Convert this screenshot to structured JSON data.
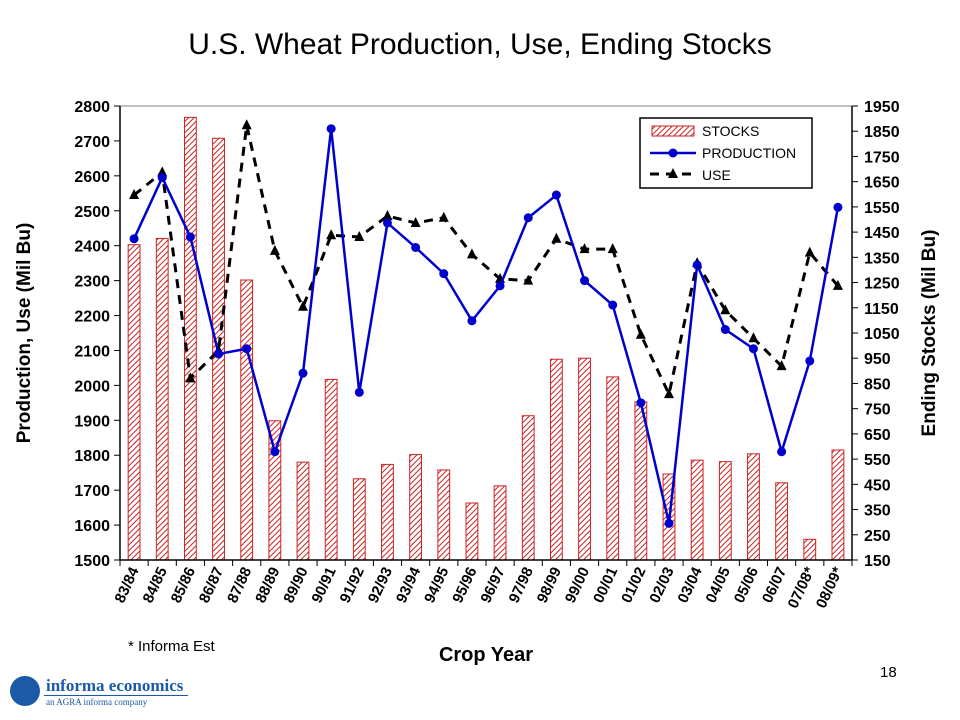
{
  "page": {
    "footnote": "* Informa Est",
    "page_number": "18",
    "logo": {
      "name": "informa economics",
      "tagline": "an AGRA informa company"
    }
  },
  "chart_data": {
    "type": "bar+line",
    "title": "U.S. Wheat Production, Use, Ending Stocks",
    "xlabel": "Crop Year",
    "ylabel_left": "Production, Use  (Mil Bu)",
    "ylabel_right": "Ending Stocks  (Mil Bu)",
    "ylim_left": [
      1500,
      2800
    ],
    "yticks_left": [
      1500,
      1600,
      1700,
      1800,
      1900,
      2000,
      2100,
      2200,
      2300,
      2400,
      2500,
      2600,
      2700,
      2800
    ],
    "ylim_right": [
      150,
      1950
    ],
    "yticks_right": [
      150,
      250,
      350,
      450,
      550,
      650,
      750,
      850,
      950,
      1050,
      1150,
      1250,
      1350,
      1450,
      1550,
      1650,
      1750,
      1850,
      1950
    ],
    "grid": false,
    "legend_position": "top-right",
    "categories": [
      "83/84",
      "84/85",
      "85/86",
      "86/87",
      "87/88",
      "88/89",
      "89/90",
      "90/91",
      "91/92",
      "92/93",
      "93/94",
      "94/95",
      "95/96",
      "96/97",
      "97/98",
      "98/99",
      "99/00",
      "00/01",
      "01/02",
      "02/03",
      "03/04",
      "04/05",
      "05/06",
      "06/07",
      "07/08*",
      "08/09*"
    ],
    "series": [
      {
        "name": "STOCKS",
        "axis": "right",
        "kind": "bar",
        "color": "#cc2222",
        "values": [
          1400,
          1425,
          1905,
          1822,
          1260,
          702,
          538,
          866,
          472,
          529,
          568,
          507,
          376,
          444,
          722,
          946,
          950,
          876,
          777,
          491,
          546,
          540,
          571,
          456,
          232,
          586
        ]
      },
      {
        "name": "PRODUCTION",
        "axis": "left",
        "kind": "line",
        "color": "#0000cc",
        "values": [
          2420,
          2595,
          2425,
          2090,
          2105,
          1810,
          2035,
          2735,
          1980,
          2465,
          2395,
          2320,
          2185,
          2285,
          2480,
          2545,
          2300,
          2230,
          1950,
          1605,
          2345,
          2160,
          2105,
          1810,
          2070,
          2510
        ]
      },
      {
        "name": "USE",
        "axis": "left",
        "kind": "line-dashed",
        "color": "#000000",
        "values": [
          2545,
          2610,
          2020,
          2100,
          2745,
          2385,
          2225,
          2430,
          2425,
          2485,
          2465,
          2480,
          2375,
          2305,
          2300,
          2420,
          2390,
          2390,
          2145,
          1975,
          2350,
          2215,
          2135,
          2055,
          2380,
          2285
        ]
      }
    ]
  }
}
